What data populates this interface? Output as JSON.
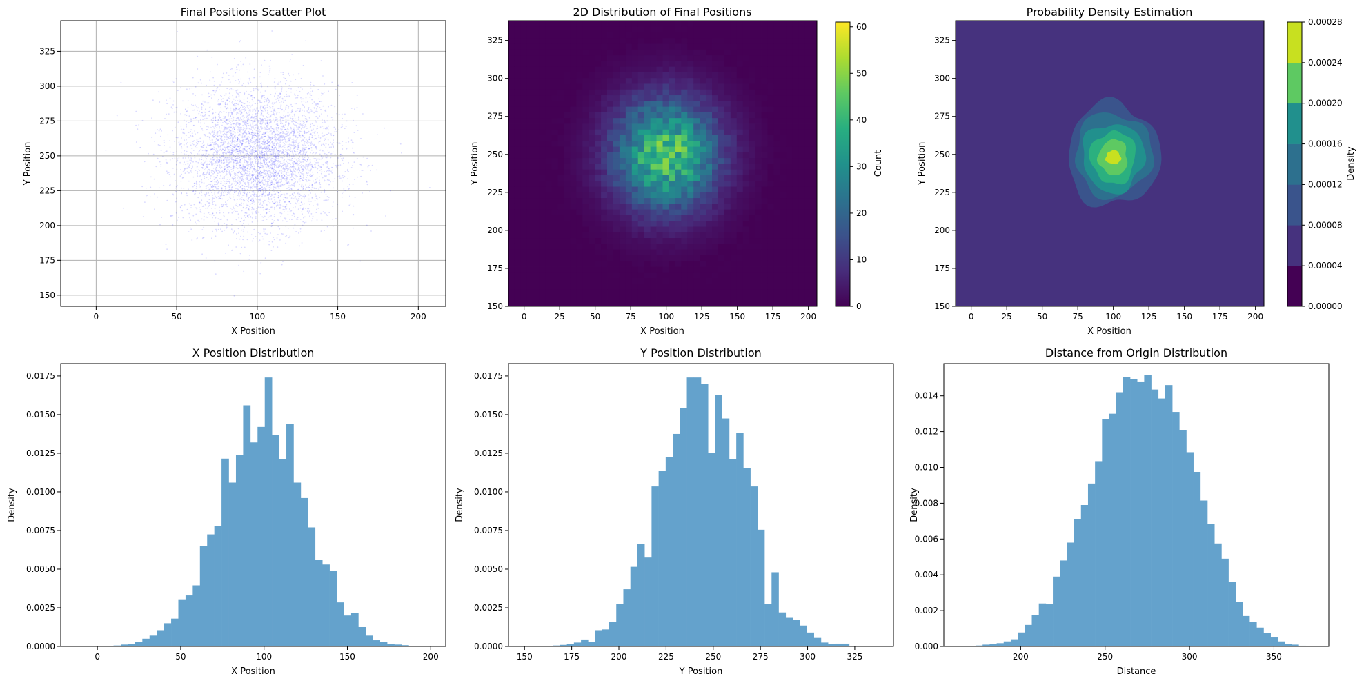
{
  "chart_data": [
    {
      "id": "scatter",
      "type": "scatter",
      "title": "Final Positions Scatter Plot",
      "xlabel": "X Position",
      "ylabel": "Y Position",
      "xlim": [
        -22,
        217
      ],
      "ylim": [
        142,
        347
      ],
      "xticks": [
        0,
        50,
        100,
        150,
        200
      ],
      "yticks": [
        150,
        175,
        200,
        225,
        250,
        275,
        300,
        325
      ],
      "grid": true,
      "point_color": "#0000ff",
      "point_alpha": 0.15,
      "distribution": {
        "x_mean": 100,
        "x_std": 25,
        "y_mean": 250,
        "y_std": 25,
        "n_points": 5000
      }
    },
    {
      "id": "hist2d",
      "type": "heatmap",
      "title": "2D Distribution of Final Positions",
      "xlabel": "X Position",
      "ylabel": "Y Position",
      "xlim": [
        -11,
        206
      ],
      "ylim": [
        150,
        338
      ],
      "xticks": [
        0,
        25,
        50,
        75,
        100,
        125,
        150,
        175,
        200
      ],
      "yticks": [
        150,
        175,
        200,
        225,
        250,
        275,
        300,
        325
      ],
      "colormap": "viridis",
      "colorbar": {
        "label": "Count",
        "min": 0,
        "max": 61,
        "ticks": [
          0,
          10,
          20,
          30,
          40,
          50,
          60
        ]
      },
      "bins": [
        50,
        50
      ],
      "peak_count": 61,
      "center": [
        100,
        250
      ],
      "spread": [
        25,
        25
      ]
    },
    {
      "id": "kde",
      "type": "heatmap",
      "title": "Probability Density Estimation",
      "xlabel": "X Position",
      "ylabel": "Y Position",
      "xlim": [
        -11,
        206
      ],
      "ylim": [
        150,
        338
      ],
      "xticks": [
        0,
        25,
        50,
        75,
        100,
        125,
        150,
        175,
        200
      ],
      "yticks": [
        150,
        175,
        200,
        225,
        250,
        275,
        300,
        325
      ],
      "colormap": "viridis",
      "colorbar": {
        "label": "Density",
        "ticks": [
          "0.00000",
          "0.00004",
          "0.00008",
          "0.00012",
          "0.00016",
          "0.00020",
          "0.00024",
          "0.00028"
        ]
      },
      "levels": [
        0,
        4e-05,
        8e-05,
        0.00012,
        0.00016,
        0.0002,
        0.00024,
        0.00028
      ],
      "level_colors": [
        "#46327e",
        "#3a548c",
        "#2d708e",
        "#21908d",
        "#2bb07f",
        "#5ec962",
        "#c8e020"
      ],
      "center": [
        100,
        248
      ]
    },
    {
      "id": "xhist",
      "type": "bar",
      "title": "X Position Distribution",
      "xlabel": "X Position",
      "ylabel": "Density",
      "xlim": [
        -22,
        209
      ],
      "ylim": [
        0,
        0.0183
      ],
      "xticks": [
        0,
        50,
        100,
        150,
        200
      ],
      "yticks": [
        "0.0000",
        "0.0025",
        "0.0050",
        "0.0075",
        "0.0100",
        "0.0125",
        "0.0150",
        "0.0175"
      ],
      "ytick_values": [
        0,
        0.0025,
        0.005,
        0.0075,
        0.01,
        0.0125,
        0.015,
        0.0175
      ],
      "bin_start": -11.9,
      "bin_width": 4.32,
      "values": [
        2e-05,
        0.0,
        2e-05,
        2e-05,
        4e-05,
        6e-05,
        0.00012,
        0.00014,
        0.0003,
        0.0005,
        0.0007,
        0.00105,
        0.0015,
        0.0018,
        0.00305,
        0.0033,
        0.00395,
        0.0065,
        0.00725,
        0.0078,
        0.01215,
        0.0106,
        0.0124,
        0.0156,
        0.0132,
        0.0142,
        0.0174,
        0.0137,
        0.0121,
        0.0144,
        0.0106,
        0.0096,
        0.0077,
        0.0056,
        0.0053,
        0.0049,
        0.00285,
        0.002,
        0.00215,
        0.00125,
        0.0007,
        0.0004,
        0.0003,
        0.00015,
        0.00012,
        8e-05,
        3e-05,
        4e-05,
        3e-05,
        2e-05
      ],
      "bar_color": "#64a2cc"
    },
    {
      "id": "yhist",
      "type": "bar",
      "title": "Y Position Distribution",
      "xlabel": "Y Position",
      "ylabel": "Density",
      "xlim": [
        141.5,
        345.5
      ],
      "ylim": [
        0,
        0.0183
      ],
      "xticks": [
        150,
        175,
        200,
        225,
        250,
        275,
        300,
        325
      ],
      "yticks": [
        "0.0000",
        "0.0025",
        "0.0050",
        "0.0075",
        "0.0100",
        "0.0125",
        "0.0150",
        "0.0175"
      ],
      "ytick_values": [
        0,
        0.0025,
        0.005,
        0.0075,
        0.01,
        0.0125,
        0.015,
        0.0175
      ],
      "bin_start": 150,
      "bin_width": 3.74,
      "values": [
        4e-05,
        0.0,
        2e-05,
        4e-05,
        6e-05,
        0.0001,
        0.00014,
        0.00025,
        0.00045,
        0.0003,
        0.00105,
        0.0011,
        0.0016,
        0.00275,
        0.0037,
        0.00515,
        0.00665,
        0.00575,
        0.01035,
        0.01135,
        0.01225,
        0.01375,
        0.0154,
        0.0174,
        0.0174,
        0.017,
        0.0125,
        0.01625,
        0.01475,
        0.0121,
        0.0138,
        0.01155,
        0.01035,
        0.00755,
        0.00275,
        0.0048,
        0.0022,
        0.00185,
        0.0017,
        0.00135,
        0.0009,
        0.00055,
        0.00025,
        0.00015,
        0.00018,
        0.00018,
        4e-05,
        4e-05,
        3e-05,
        2e-05
      ],
      "bar_color": "#64a2cc"
    },
    {
      "id": "disthist",
      "type": "bar",
      "title": "Distance from Origin Distribution",
      "xlabel": "Distance",
      "ylabel": "Density",
      "xlim": [
        154.5,
        382.5
      ],
      "ylim": [
        0,
        0.0158
      ],
      "xticks": [
        200,
        250,
        300,
        350
      ],
      "yticks": [
        "0.000",
        "0.002",
        "0.004",
        "0.006",
        "0.008",
        "0.010",
        "0.012",
        "0.014"
      ],
      "ytick_values": [
        0,
        0.002,
        0.004,
        0.006,
        0.008,
        0.01,
        0.012,
        0.014
      ],
      "bin_start": 165,
      "bin_width": 4.16,
      "values": [
        2e-05,
        1e-05,
        5e-05,
        0.0001,
        0.00012,
        0.00018,
        0.00028,
        0.0004,
        0.00078,
        0.0012,
        0.00175,
        0.0024,
        0.00235,
        0.0039,
        0.0048,
        0.0058,
        0.0071,
        0.0079,
        0.0091,
        0.01035,
        0.0127,
        0.013,
        0.0142,
        0.01505,
        0.01495,
        0.0148,
        0.01515,
        0.01435,
        0.01385,
        0.0146,
        0.0131,
        0.0121,
        0.01085,
        0.00975,
        0.00815,
        0.00685,
        0.00575,
        0.0049,
        0.0036,
        0.0025,
        0.0017,
        0.00135,
        0.00105,
        0.00075,
        0.0005,
        0.00028,
        0.00015,
        0.0001,
        4e-05,
        2e-05
      ],
      "bar_color": "#64a2cc"
    }
  ]
}
